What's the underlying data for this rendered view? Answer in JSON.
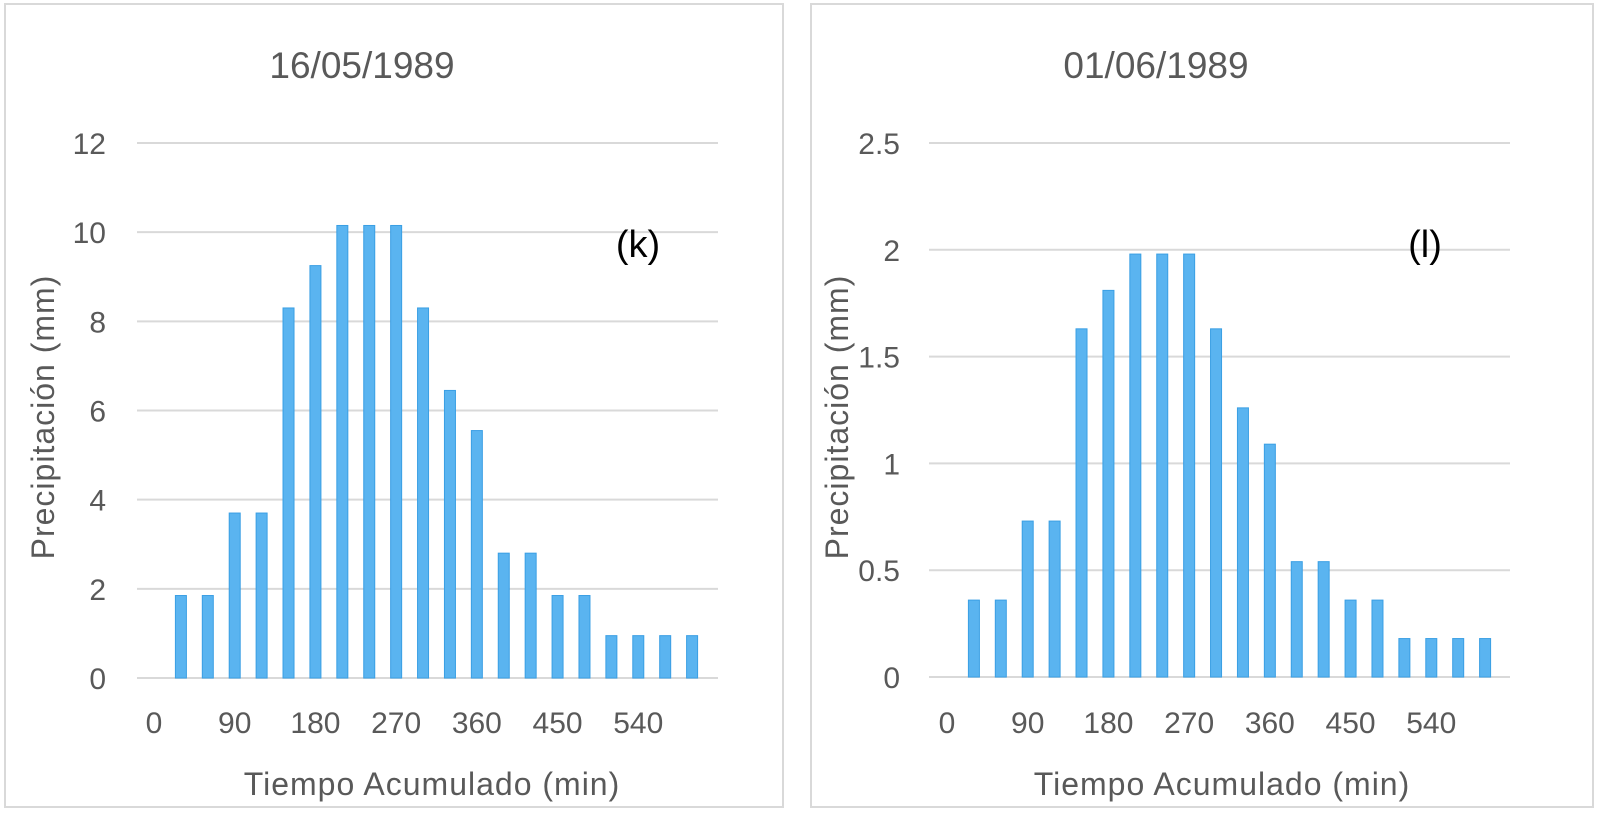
{
  "colors": {
    "bar": "#5ab4f0",
    "grid": "#d9d9d9",
    "text": "#595959"
  },
  "chart_data": [
    {
      "type": "bar",
      "title": "16/05/1989",
      "annotation": "(k)",
      "xlabel": "Tiempo Acumulado (min)",
      "ylabel": "Precipitación (mm)",
      "ylim": [
        0,
        12
      ],
      "yticks": [
        "0",
        "2",
        "4",
        "6",
        "8",
        "10",
        "12"
      ],
      "xlim": [
        0,
        630
      ],
      "xticks": [
        "0",
        "90",
        "180",
        "270",
        "360",
        "450",
        "540"
      ],
      "grid": true,
      "x": [
        30,
        60,
        90,
        120,
        150,
        180,
        210,
        240,
        270,
        300,
        330,
        360,
        390,
        420,
        450,
        480,
        510,
        540,
        570,
        600
      ],
      "values": [
        1.85,
        1.85,
        3.7,
        3.7,
        8.3,
        9.25,
        10.15,
        10.15,
        10.15,
        8.3,
        6.45,
        5.55,
        2.8,
        2.8,
        1.85,
        1.85,
        0.95,
        0.95,
        0.95,
        0.95
      ]
    },
    {
      "type": "bar",
      "title": "01/06/1989",
      "annotation": "(l)",
      "xlabel": "Tiempo Acumulado (min)",
      "ylabel": "Precipitación (mm)",
      "ylim": [
        0,
        2.5
      ],
      "yticks": [
        "0",
        "0.5",
        "1",
        "1.5",
        "2",
        "2.5"
      ],
      "xlim": [
        0,
        630
      ],
      "xticks": [
        "0",
        "90",
        "180",
        "270",
        "360",
        "450",
        "540"
      ],
      "grid": true,
      "x": [
        30,
        60,
        90,
        120,
        150,
        180,
        210,
        240,
        270,
        300,
        330,
        360,
        390,
        420,
        450,
        480,
        510,
        540,
        570,
        600
      ],
      "values": [
        0.36,
        0.36,
        0.73,
        0.73,
        1.63,
        1.81,
        1.98,
        1.98,
        1.98,
        1.63,
        1.26,
        1.09,
        0.54,
        0.54,
        0.36,
        0.36,
        0.18,
        0.18,
        0.18,
        0.18
      ]
    }
  ]
}
